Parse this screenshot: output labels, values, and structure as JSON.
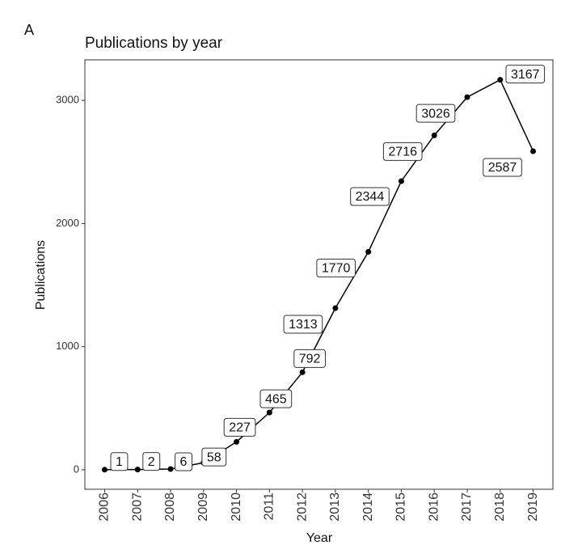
{
  "panel": "A",
  "chart_data": {
    "type": "line",
    "title": "Publications by year",
    "x_label": "Year",
    "y_label": "Publications",
    "x": [
      2006,
      2007,
      2008,
      2009,
      2010,
      2011,
      2012,
      2013,
      2014,
      2015,
      2016,
      2017,
      2018,
      2019
    ],
    "series": [
      {
        "name": "Publications",
        "color": "#000000",
        "values": [
          1,
          2,
          6,
          58,
          227,
          465,
          792,
          1313,
          1770,
          2344,
          2716,
          3026,
          3167,
          2587
        ]
      }
    ],
    "xlim": [
      2005.4,
      2019.6
    ],
    "ylim": [
      -158,
      3329
    ],
    "xticks": [
      2006,
      2007,
      2008,
      2009,
      2010,
      2011,
      2012,
      2013,
      2014,
      2015,
      2016,
      2017,
      2018,
      2019
    ],
    "yticks": [
      0,
      1000,
      2000,
      3000
    ],
    "grid": false
  }
}
